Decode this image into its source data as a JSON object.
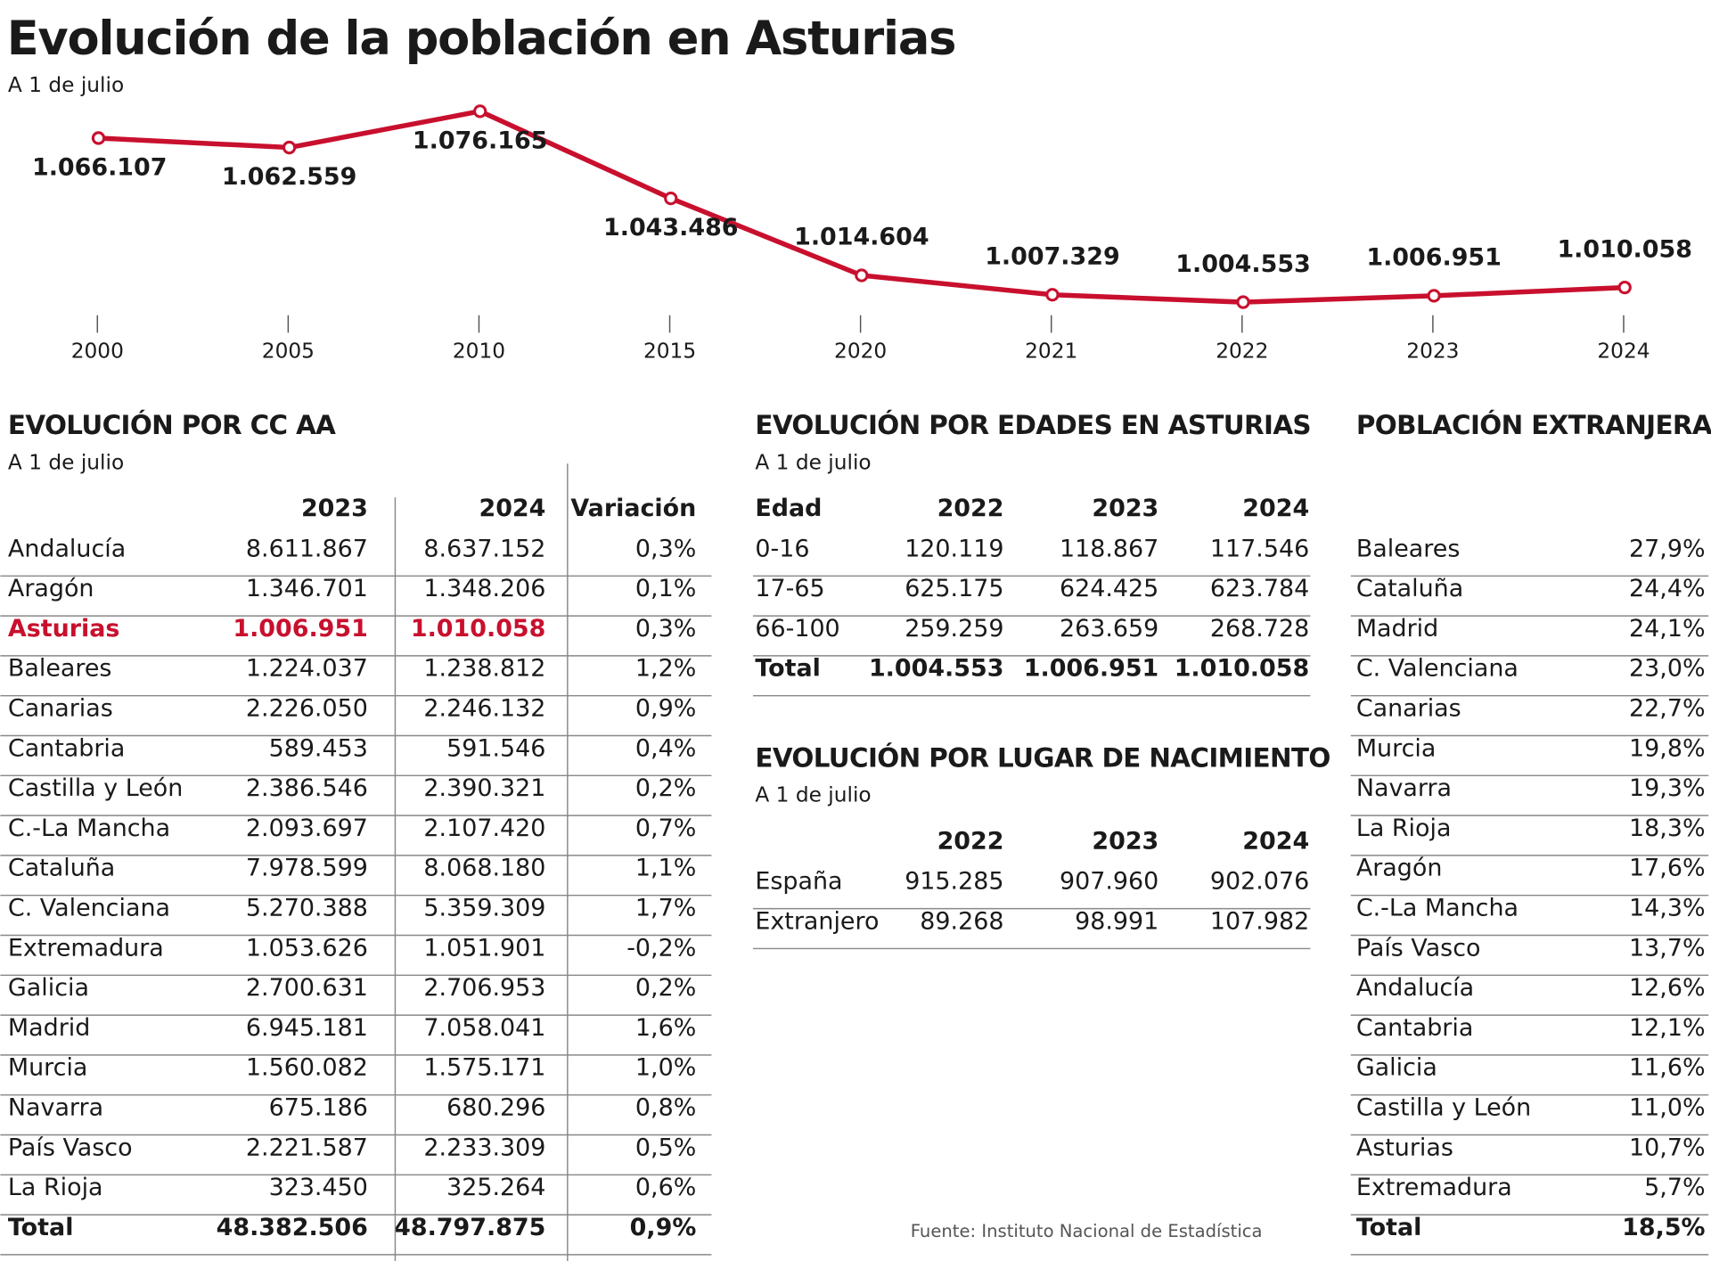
{
  "chart_data": {
    "type": "line",
    "title": "Evolución de la población en Asturias",
    "subtitle": "A 1 de julio",
    "categories": [
      "2000",
      "2005",
      "2010",
      "2015",
      "2020",
      "2021",
      "2022",
      "2023",
      "2024"
    ],
    "values": [
      1066107,
      1062559,
      1076165,
      1043486,
      1014604,
      1007329,
      1004553,
      1006951,
      1010058
    ],
    "value_labels": [
      "1.066.107",
      "1.062.559",
      "1.076.165",
      "1.043.486",
      "1.014.604",
      "1.007.329",
      "1.004.553",
      "1.006.951",
      "1.010.058"
    ],
    "color": "#c8102e"
  },
  "cc_aa": {
    "title": "EVOLUCIÓN POR CC AA",
    "subtitle": "A 1 de julio",
    "columns": [
      "2023",
      "2024",
      "Variación"
    ],
    "highlighted_row": 2,
    "highlight_color": "#c8102e",
    "rows": [
      [
        "Andalucía",
        "8.611.867",
        "8.637.152",
        "0,3%"
      ],
      [
        "Aragón",
        "1.346.701",
        "1.348.206",
        "0,1%"
      ],
      [
        "Asturias",
        "1.006.951",
        "1.010.058",
        "0,3%"
      ],
      [
        "Baleares",
        "1.224.037",
        "1.238.812",
        "1,2%"
      ],
      [
        "Canarias",
        "2.226.050",
        "2.246.132",
        "0,9%"
      ],
      [
        "Cantabria",
        "589.453",
        "591.546",
        "0,4%"
      ],
      [
        "Castilla y León",
        "2.386.546",
        "2.390.321",
        "0,2%"
      ],
      [
        "C.-La Mancha",
        "2.093.697",
        "2.107.420",
        "0,7%"
      ],
      [
        "Cataluña",
        "7.978.599",
        "8.068.180",
        "1,1%"
      ],
      [
        "C. Valenciana",
        "5.270.388",
        "5.359.309",
        "1,7%"
      ],
      [
        "Extremadura",
        "1.053.626",
        "1.051.901",
        "-0,2%"
      ],
      [
        "Galicia",
        "2.700.631",
        "2.706.953",
        "0,2%"
      ],
      [
        "Madrid",
        "6.945.181",
        "7.058.041",
        "1,6%"
      ],
      [
        "Murcia",
        "1.560.082",
        "1.575.171",
        "1,0%"
      ],
      [
        "Navarra",
        "675.186",
        "680.296",
        "0,8%"
      ],
      [
        "País Vasco",
        "2.221.587",
        "2.233.309",
        "0,5%"
      ],
      [
        "La Rioja",
        "323.450",
        "325.264",
        "0,6%"
      ]
    ],
    "total": [
      "Total",
      "48.382.506",
      "48.797.875",
      "0,9%"
    ]
  },
  "edades": {
    "title": "EVOLUCIÓN POR EDADES EN ASTURIAS",
    "subtitle": "A 1 de julio",
    "columns": [
      "Edad",
      "2022",
      "2023",
      "2024"
    ],
    "rows": [
      [
        "0-16",
        "120.119",
        "118.867",
        "117.546"
      ],
      [
        "17-65",
        "625.175",
        "624.425",
        "623.784"
      ],
      [
        "66-100",
        "259.259",
        "263.659",
        "268.728"
      ]
    ],
    "total": [
      "Total",
      "1.004.553",
      "1.006.951",
      "1.010.058"
    ]
  },
  "nacimiento": {
    "title": "EVOLUCIÓN POR LUGAR DE NACIMIENTO",
    "subtitle": "A 1 de julio",
    "columns": [
      "2022",
      "2023",
      "2024"
    ],
    "rows": [
      [
        "España",
        "915.285",
        "907.960",
        "902.076"
      ],
      [
        "Extranjero",
        "89.268",
        "98.991",
        "107.982"
      ]
    ]
  },
  "extranjera": {
    "title": "POBLACIÓN EXTRANJERA",
    "rows": [
      [
        "Baleares",
        "27,9%"
      ],
      [
        "Cataluña",
        "24,4%"
      ],
      [
        "Madrid",
        "24,1%"
      ],
      [
        "C. Valenciana",
        "23,0%"
      ],
      [
        "Canarias",
        "22,7%"
      ],
      [
        "Murcia",
        "19,8%"
      ],
      [
        "Navarra",
        "19,3%"
      ],
      [
        "La Rioja",
        "18,3%"
      ],
      [
        "Aragón",
        "17,6%"
      ],
      [
        "C.-La Mancha",
        "14,3%"
      ],
      [
        "País Vasco",
        "13,7%"
      ],
      [
        "Andalucía",
        "12,6%"
      ],
      [
        "Cantabria",
        "12,1%"
      ],
      [
        "Galicia",
        "11,6%"
      ],
      [
        "Castilla y León",
        "11,0%"
      ],
      [
        "Asturias",
        "10,7%"
      ],
      [
        "Extremadura",
        "5,7%"
      ]
    ],
    "total": [
      "Total",
      "18,5%"
    ]
  },
  "source": "Fuente: Instituto Nacional de Estadística"
}
